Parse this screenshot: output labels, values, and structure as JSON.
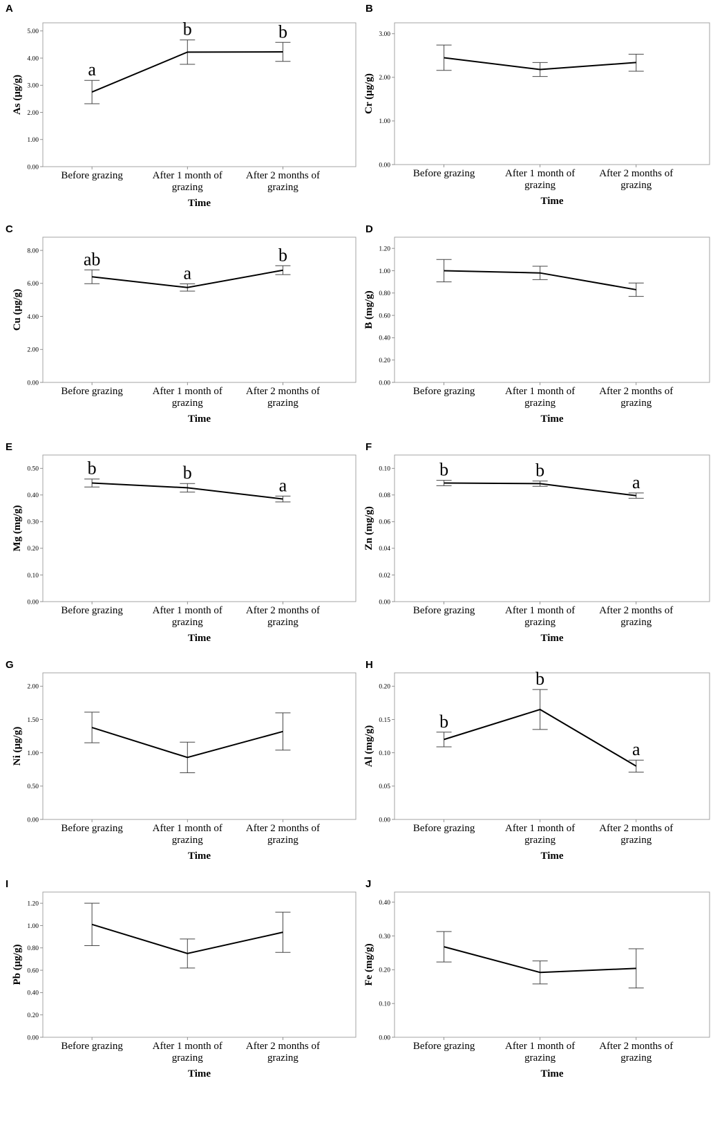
{
  "figure": {
    "chart_data": [
      {
        "id": "A",
        "panel_label": "A",
        "type": "line",
        "ylabel": "As (μg/g)",
        "xlabel": "Time",
        "categories": [
          "Before grazing",
          [
            "After 1 month of",
            "grazing"
          ],
          [
            "After 2 months of",
            "grazing"
          ]
        ],
        "ylim": [
          0,
          5.3
        ],
        "yticks": [
          "0.00",
          "1.00",
          "2.00",
          "3.00",
          "4.00",
          "5.00"
        ],
        "ytick_values": [
          0,
          1,
          2,
          3,
          4,
          5
        ],
        "series": [
          {
            "name": "As",
            "values": [
              2.75,
              4.22,
              4.23
            ],
            "err_low": [
              2.32,
              3.77,
              3.88
            ],
            "err_high": [
              3.18,
              4.67,
              4.58
            ]
          }
        ],
        "sig_letters": [
          "a",
          "b",
          "b"
        ]
      },
      {
        "id": "B",
        "panel_label": "B",
        "type": "line",
        "ylabel": "Cr (μg/g)",
        "xlabel": "Time",
        "categories": [
          "Before grazing",
          [
            "After 1 month of",
            "grazing"
          ],
          [
            "After 2 months of",
            "grazing"
          ]
        ],
        "ylim": [
          0,
          3.25
        ],
        "yticks": [
          "0.00",
          "1.00",
          "2.00",
          "3.00"
        ],
        "ytick_values": [
          0,
          1,
          2,
          3
        ],
        "series": [
          {
            "name": "Cr",
            "values": [
              2.45,
              2.18,
              2.34
            ],
            "err_low": [
              2.16,
              2.02,
              2.14
            ],
            "err_high": [
              2.74,
              2.34,
              2.53
            ]
          }
        ],
        "sig_letters": []
      },
      {
        "id": "C",
        "panel_label": "C",
        "type": "line",
        "ylabel": "Cu (μg/g)",
        "xlabel": "Time",
        "categories": [
          "Before grazing",
          [
            "After 1 month of",
            "grazing"
          ],
          [
            "After 2 months of",
            "grazing"
          ]
        ],
        "ylim": [
          0,
          8.8
        ],
        "yticks": [
          "0.00",
          "2.00",
          "4.00",
          "6.00",
          "8.00"
        ],
        "ytick_values": [
          0,
          2,
          4,
          6,
          8
        ],
        "series": [
          {
            "name": "Cu",
            "values": [
              6.4,
              5.75,
              6.8
            ],
            "err_low": [
              5.98,
              5.53,
              6.53
            ],
            "err_high": [
              6.82,
              5.97,
              7.07
            ]
          }
        ],
        "sig_letters": [
          "ab",
          "a",
          "b"
        ]
      },
      {
        "id": "D",
        "panel_label": "D",
        "type": "line",
        "ylabel": "B (mg/g)",
        "xlabel": "Time",
        "categories": [
          "Before grazing",
          [
            "After 1 month of",
            "grazing"
          ],
          [
            "After 2 months of",
            "grazing"
          ]
        ],
        "ylim": [
          0,
          1.3
        ],
        "yticks": [
          "0.00",
          "0.20",
          "0.40",
          "0.60",
          "0.80",
          "1.00",
          "1.20"
        ],
        "ytick_values": [
          0,
          0.2,
          0.4,
          0.6,
          0.8,
          1.0,
          1.2
        ],
        "series": [
          {
            "name": "B",
            "values": [
              1.0,
              0.98,
              0.83
            ],
            "err_low": [
              0.9,
              0.92,
              0.77
            ],
            "err_high": [
              1.1,
              1.04,
              0.89
            ]
          }
        ],
        "sig_letters": []
      },
      {
        "id": "E",
        "panel_label": "E",
        "type": "line",
        "ylabel": "Mg (mg/g)",
        "xlabel": "Time",
        "categories": [
          "Before grazing",
          [
            "After 1 month of",
            "grazing"
          ],
          [
            "After 2 months of",
            "grazing"
          ]
        ],
        "ylim": [
          0,
          0.55
        ],
        "yticks": [
          "0.00",
          "0.10",
          "0.20",
          "0.30",
          "0.40",
          "0.50"
        ],
        "ytick_values": [
          0,
          0.1,
          0.2,
          0.3,
          0.4,
          0.5
        ],
        "series": [
          {
            "name": "Mg",
            "values": [
              0.445,
              0.427,
              0.385
            ],
            "err_low": [
              0.43,
              0.411,
              0.374
            ],
            "err_high": [
              0.46,
              0.443,
              0.396
            ]
          }
        ],
        "sig_letters": [
          "b",
          "b",
          "a"
        ]
      },
      {
        "id": "F",
        "panel_label": "F",
        "type": "line",
        "ylabel": "Zn (mg/g)",
        "xlabel": "Time",
        "categories": [
          "Before grazing",
          [
            "After 1 month of",
            "grazing"
          ],
          [
            "After 2 months of",
            "grazing"
          ]
        ],
        "ylim": [
          0,
          0.11
        ],
        "yticks": [
          "0.00",
          "0.02",
          "0.04",
          "0.06",
          "0.08",
          "0.10"
        ],
        "ytick_values": [
          0,
          0.02,
          0.04,
          0.06,
          0.08,
          0.1
        ],
        "series": [
          {
            "name": "Zn",
            "values": [
              0.089,
              0.0885,
              0.0795
            ],
            "err_low": [
              0.087,
              0.0865,
              0.0775
            ],
            "err_high": [
              0.091,
              0.0905,
              0.0815
            ]
          }
        ],
        "sig_letters": [
          "b",
          "b",
          "a"
        ]
      },
      {
        "id": "G",
        "panel_label": "G",
        "type": "line",
        "ylabel": "Ni (μg/g)",
        "xlabel": "Time",
        "categories": [
          "Before grazing",
          [
            "After 1 month of",
            "grazing"
          ],
          [
            "After 2 months of",
            "grazing"
          ]
        ],
        "ylim": [
          0,
          2.2
        ],
        "yticks": [
          "0.00",
          "0.50",
          "1.00",
          "1.50",
          "2.00"
        ],
        "ytick_values": [
          0,
          0.5,
          1.0,
          1.5,
          2.0
        ],
        "series": [
          {
            "name": "Ni",
            "values": [
              1.38,
              0.93,
              1.32
            ],
            "err_low": [
              1.15,
              0.7,
              1.04
            ],
            "err_high": [
              1.61,
              1.16,
              1.6
            ]
          }
        ],
        "sig_letters": []
      },
      {
        "id": "H",
        "panel_label": "H",
        "type": "line",
        "ylabel": "Al (mg/g)",
        "xlabel": "Time",
        "categories": [
          "Before grazing",
          [
            "After 1 month of",
            "grazing"
          ],
          [
            "After 2 months of",
            "grazing"
          ]
        ],
        "ylim": [
          0,
          0.22
        ],
        "yticks": [
          "0.00",
          "0.05",
          "0.10",
          "0.15",
          "0.20"
        ],
        "ytick_values": [
          0,
          0.05,
          0.1,
          0.15,
          0.2
        ],
        "series": [
          {
            "name": "Al",
            "values": [
              0.12,
              0.165,
              0.08
            ],
            "err_low": [
              0.109,
              0.135,
              0.071
            ],
            "err_high": [
              0.131,
              0.195,
              0.089
            ]
          }
        ],
        "sig_letters": [
          "b",
          "b",
          "a"
        ]
      },
      {
        "id": "I",
        "panel_label": "I",
        "type": "line",
        "ylabel": "Pb (μg/g)",
        "xlabel": "Time",
        "categories": [
          "Before grazing",
          [
            "After 1 month of",
            "grazing"
          ],
          [
            "After 2 months of",
            "grazing"
          ]
        ],
        "ylim": [
          0,
          1.3
        ],
        "yticks": [
          "0.00",
          "0.20",
          "0.40",
          "0.60",
          "0.80",
          "1.00",
          "1.20"
        ],
        "ytick_values": [
          0,
          0.2,
          0.4,
          0.6,
          0.8,
          1.0,
          1.2
        ],
        "series": [
          {
            "name": "Pb",
            "values": [
              1.01,
              0.75,
              0.94
            ],
            "err_low": [
              0.82,
              0.62,
              0.76
            ],
            "err_high": [
              1.2,
              0.88,
              1.12
            ]
          }
        ],
        "sig_letters": []
      },
      {
        "id": "J",
        "panel_label": "J",
        "type": "line",
        "ylabel": "Fe (mg/g)",
        "xlabel": "Time",
        "categories": [
          "Before grazing",
          [
            "After 1 month of",
            "grazing"
          ],
          [
            "After 2 months of",
            "grazing"
          ]
        ],
        "ylim": [
          0,
          0.43
        ],
        "yticks": [
          "0.00",
          "0.10",
          "0.20",
          "0.30",
          "0.40"
        ],
        "ytick_values": [
          0,
          0.1,
          0.2,
          0.3,
          0.4
        ],
        "series": [
          {
            "name": "Fe",
            "values": [
              0.268,
              0.192,
              0.204
            ],
            "err_low": [
              0.223,
              0.158,
              0.146
            ],
            "err_high": [
              0.313,
              0.226,
              0.262
            ]
          }
        ],
        "sig_letters": []
      }
    ]
  }
}
